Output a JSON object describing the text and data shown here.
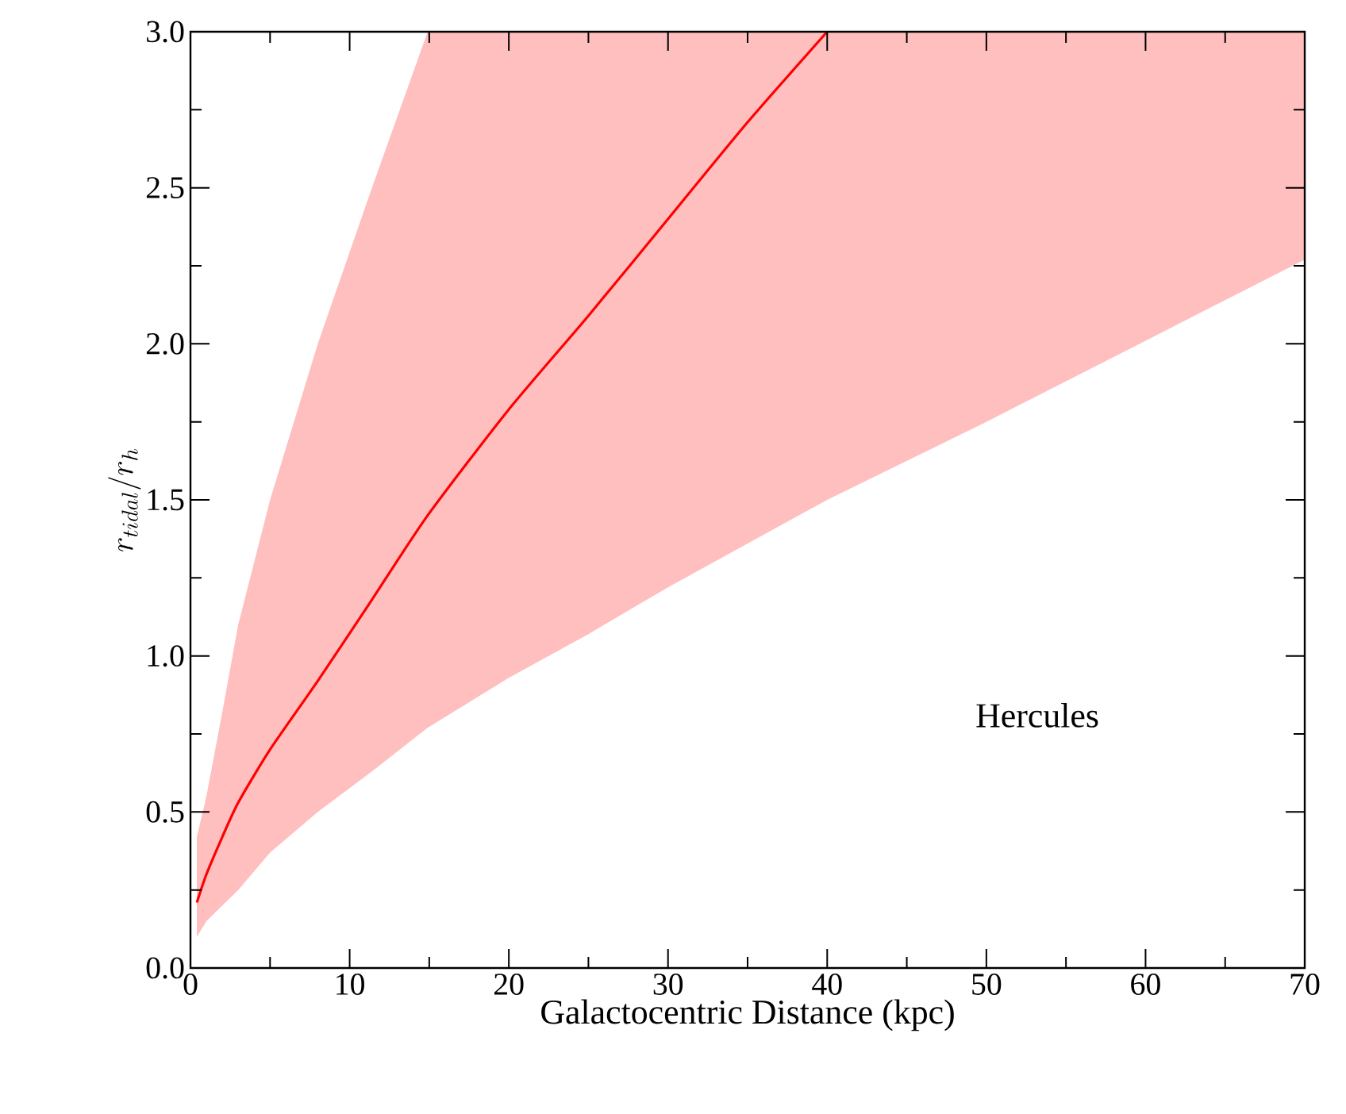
{
  "chart_data": {
    "type": "line",
    "xlabel": "Galactocentric Distance (kpc)",
    "ylabel": "r_{tidal}/r_h",
    "xlim": [
      0,
      70
    ],
    "ylim": [
      0,
      3.0
    ],
    "xticks": [
      0,
      10,
      20,
      30,
      40,
      50,
      60,
      70
    ],
    "yticks": [
      {
        "value": 0,
        "label": "0.0"
      },
      {
        "value": 0.5,
        "label": "0.5"
      },
      {
        "value": 1.0,
        "label": "1.0"
      },
      {
        "value": 1.5,
        "label": "1.5"
      },
      {
        "value": 2.0,
        "label": "2.0"
      },
      {
        "value": 2.5,
        "label": "2.5"
      },
      {
        "value": 3.0,
        "label": "3.0"
      }
    ],
    "annotations": [
      "Hercules"
    ],
    "series": [
      {
        "color": "#ff0000",
        "x": [
          0.4,
          1,
          2,
          3,
          5,
          8,
          11.4,
          14.9,
          20,
          25,
          30,
          35,
          40,
          50,
          60,
          70
        ],
        "values": [
          0.21,
          0.3,
          0.42,
          0.53,
          0.7,
          0.92,
          1.18,
          1.45,
          1.79,
          2.09,
          2.4,
          2.71,
          3.0,
          null,
          null,
          null
        ],
        "lower": [
          0.1,
          0.15,
          0.2,
          0.25,
          0.37,
          0.5,
          0.63,
          0.77,
          0.93,
          1.07,
          1.22,
          1.36,
          1.5,
          1.75,
          2.01,
          2.27
        ],
        "upper": [
          0.42,
          0.55,
          0.82,
          1.1,
          1.5,
          2.0,
          2.5,
          3.0,
          3.0,
          3.0,
          3.0,
          3.0,
          3.0,
          3.0,
          3.0,
          3.0
        ]
      }
    ]
  }
}
